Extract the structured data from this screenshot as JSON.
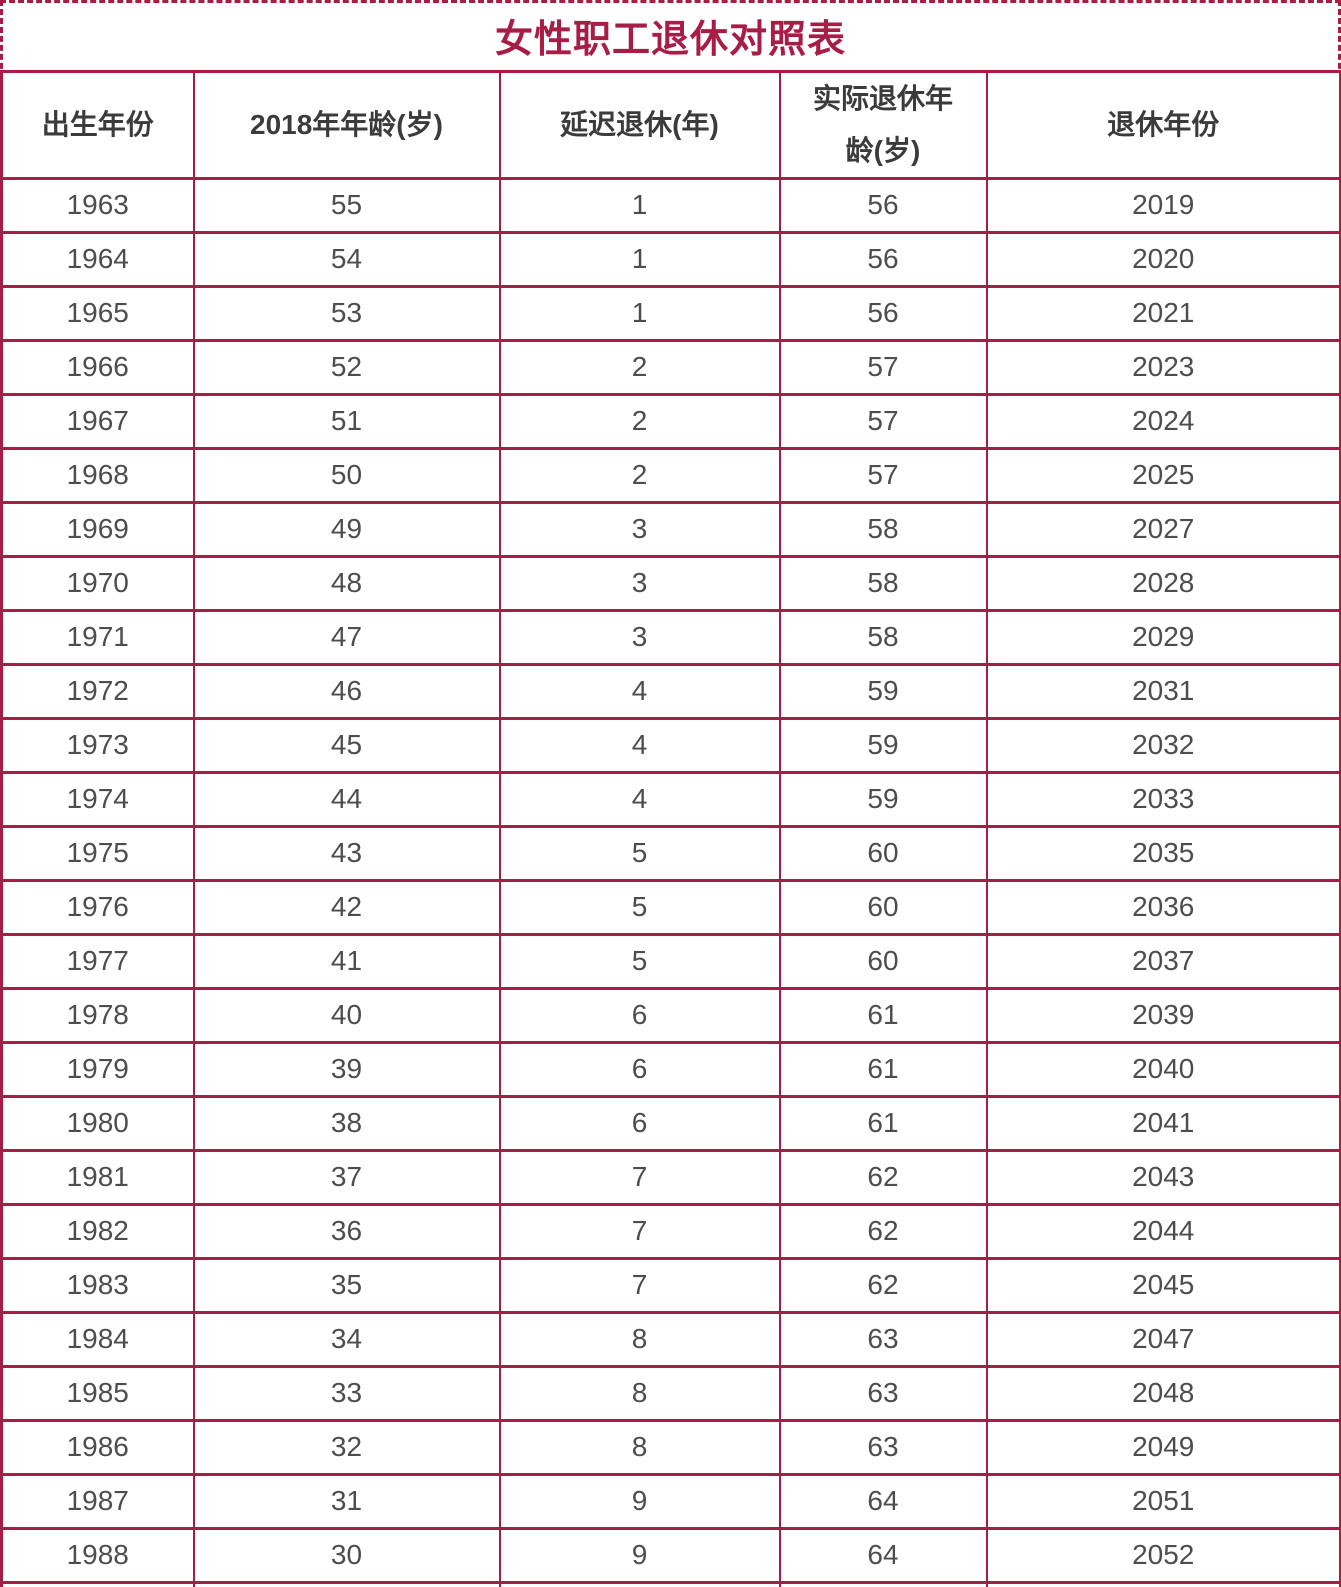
{
  "page": {
    "title": "女性职工退休对照表"
  },
  "colors": {
    "accent": "#A81D46",
    "header_text": "#3B3B3B",
    "cell_text": "#4D4D4D",
    "background": "#FFFFFF"
  },
  "table": {
    "columns": [
      "出生年份",
      "2018年年龄(岁)",
      "延迟退休(年)",
      "实际退休年\n龄(岁)",
      "退休年份"
    ],
    "rows": [
      [
        "1963",
        "55",
        "1",
        "56",
        "2019"
      ],
      [
        "1964",
        "54",
        "1",
        "56",
        "2020"
      ],
      [
        "1965",
        "53",
        "1",
        "56",
        "2021"
      ],
      [
        "1966",
        "52",
        "2",
        "57",
        "2023"
      ],
      [
        "1967",
        "51",
        "2",
        "57",
        "2024"
      ],
      [
        "1968",
        "50",
        "2",
        "57",
        "2025"
      ],
      [
        "1969",
        "49",
        "3",
        "58",
        "2027"
      ],
      [
        "1970",
        "48",
        "3",
        "58",
        "2028"
      ],
      [
        "1971",
        "47",
        "3",
        "58",
        "2029"
      ],
      [
        "1972",
        "46",
        "4",
        "59",
        "2031"
      ],
      [
        "1973",
        "45",
        "4",
        "59",
        "2032"
      ],
      [
        "1974",
        "44",
        "4",
        "59",
        "2033"
      ],
      [
        "1975",
        "43",
        "5",
        "60",
        "2035"
      ],
      [
        "1976",
        "42",
        "5",
        "60",
        "2036"
      ],
      [
        "1977",
        "41",
        "5",
        "60",
        "2037"
      ],
      [
        "1978",
        "40",
        "6",
        "61",
        "2039"
      ],
      [
        "1979",
        "39",
        "6",
        "61",
        "2040"
      ],
      [
        "1980",
        "38",
        "6",
        "61",
        "2041"
      ],
      [
        "1981",
        "37",
        "7",
        "62",
        "2043"
      ],
      [
        "1982",
        "36",
        "7",
        "62",
        "2044"
      ],
      [
        "1983",
        "35",
        "7",
        "62",
        "2045"
      ],
      [
        "1984",
        "34",
        "8",
        "63",
        "2047"
      ],
      [
        "1985",
        "33",
        "8",
        "63",
        "2048"
      ],
      [
        "1986",
        "32",
        "8",
        "63",
        "2049"
      ],
      [
        "1987",
        "31",
        "9",
        "64",
        "2051"
      ],
      [
        "1988",
        "30",
        "9",
        "64",
        "2052"
      ]
    ],
    "partial_row_visible": true
  }
}
